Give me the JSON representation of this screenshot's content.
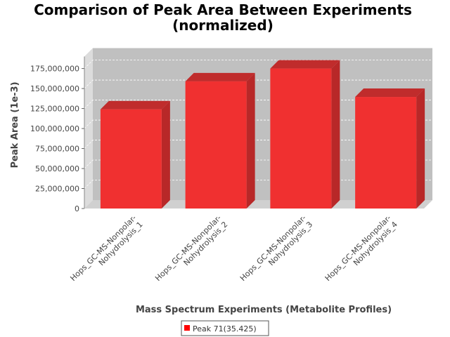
{
  "chart_data": {
    "type": "bar",
    "title_lines": [
      "Comparison of Peak Area Between Experiments",
      "(normalized)"
    ],
    "xlabel": "Mass Spectrum Experiments (Metabolite Profiles)",
    "ylabel": "Peak Area (1e-3)",
    "categories": [
      [
        "Hops_GC-MS-Nonpolar-",
        "Nohydrolysis_1"
      ],
      [
        "Hops_GC-MS-Nonpolar-",
        "Nohydrolysis_2"
      ],
      [
        "Hops_GC-MS-Nonpolar-",
        "Nohydrolysis_3"
      ],
      [
        "Hops_GC-MS-Nonpolar-",
        "Nohydrolysis_4"
      ]
    ],
    "series": [
      {
        "name": "Peak 71(35.425)",
        "values": [
          124000000,
          159000000,
          175000000,
          139500000
        ]
      }
    ],
    "yticks": [
      "0",
      "25,000,000",
      "50,000,000",
      "75,000,000",
      "100,000,000",
      "125,000,000",
      "150,000,000",
      "175,000,000"
    ],
    "ylim": [
      0,
      190000000
    ],
    "grid": true,
    "style_3d": true,
    "legend_position": "bottom",
    "colors": {
      "bar_front": "#f03030",
      "bar_side": "#b82828",
      "bar_top": "#c02c2c",
      "plot_back": "#c0c0c0",
      "plot_floor": "#d0d0d0",
      "grid": "#ffffff",
      "legend_swatch": "#ff0000"
    }
  }
}
